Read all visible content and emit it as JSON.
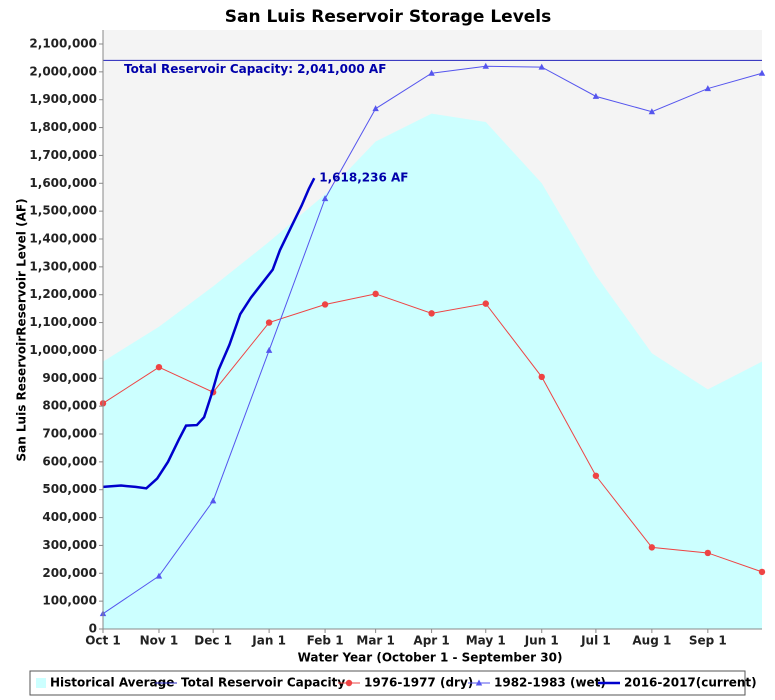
{
  "chart_data": {
    "type": "line",
    "title": "San Luis Reservoir Storage Levels",
    "x_label": "Water Year (October 1 - September 30)",
    "y_label": "San Luis ReservoirReservoir Level (AF)",
    "xlim": [
      0,
      365
    ],
    "xticks": [
      {
        "value": 0,
        "label": "Oct 1"
      },
      {
        "value": 31,
        "label": "Nov 1"
      },
      {
        "value": 61,
        "label": "Dec 1"
      },
      {
        "value": 92,
        "label": "Jan 1"
      },
      {
        "value": 123,
        "label": "Feb 1"
      },
      {
        "value": 151,
        "label": "Mar 1"
      },
      {
        "value": 182,
        "label": "Apr 1"
      },
      {
        "value": 212,
        "label": "May 1"
      },
      {
        "value": 243,
        "label": "Jun 1"
      },
      {
        "value": 273,
        "label": "Jul 1"
      },
      {
        "value": 304,
        "label": "Aug 1"
      },
      {
        "value": 335,
        "label": "Sep 1"
      }
    ],
    "ylim": [
      0,
      2100000
    ],
    "yticks": [
      0,
      {
        "value": 100000,
        "label": "100,000"
      },
      {
        "value": 200000,
        "label": "200,000"
      },
      {
        "value": 300000,
        "label": "300,000"
      },
      {
        "value": 400000,
        "label": "400,000"
      },
      {
        "value": 500000,
        "label": "500,000"
      },
      {
        "value": 600000,
        "label": "600,000"
      },
      {
        "value": 700000,
        "label": "700,000"
      },
      {
        "value": 800000,
        "label": "800,000"
      },
      {
        "value": 900000,
        "label": "900,000"
      },
      {
        "value": 1000000,
        "label": "1,000,000"
      },
      {
        "value": 1100000,
        "label": "1,100,000"
      },
      {
        "value": 1200000,
        "label": "1,200,000"
      },
      {
        "value": 1300000,
        "label": "1,300,000"
      },
      {
        "value": 1400000,
        "label": "1,400,000"
      },
      {
        "value": 1500000,
        "label": "1,500,000"
      },
      {
        "value": 1600000,
        "label": "1,600,000"
      },
      {
        "value": 1700000,
        "label": "1,700,000"
      },
      {
        "value": 1800000,
        "label": "1,800,000"
      },
      {
        "value": 1900000,
        "label": "1,900,000"
      },
      {
        "value": 2000000,
        "label": "2,000,000"
      },
      {
        "value": 2100000,
        "label": "2,100,000"
      }
    ],
    "series": [
      {
        "name": "Historical Average",
        "kind": "area",
        "color": "#ccffff",
        "x": [
          0,
          31,
          61,
          92,
          123,
          151,
          182,
          212,
          243,
          273,
          304,
          335,
          365
        ],
        "values": [
          960000,
          1085000,
          1230000,
          1390000,
          1560000,
          1750000,
          1850000,
          1820000,
          1600000,
          1270000,
          990000,
          860000,
          960000
        ]
      },
      {
        "name": "Total Reservoir Capacity",
        "kind": "line",
        "color": "#2222bb",
        "width": 1,
        "x": [
          0,
          365
        ],
        "values": [
          2041000,
          2041000
        ]
      },
      {
        "name": "1976-1977 (dry)",
        "kind": "line",
        "color": "#ee4444",
        "width": 1,
        "marker": "circle",
        "x": [
          0,
          31,
          61,
          92,
          123,
          151,
          182,
          212,
          243,
          273,
          304,
          335,
          365
        ],
        "values": [
          810000,
          940000,
          850000,
          1100000,
          1165000,
          1203000,
          1133000,
          1168000,
          905000,
          550000,
          293000,
          273000,
          205000
        ]
      },
      {
        "name": "1982-1983 (wet)",
        "kind": "line",
        "color": "#5555ee",
        "width": 1,
        "marker": "triangle",
        "x": [
          0,
          31,
          61,
          92,
          123,
          151,
          182,
          212,
          243,
          273,
          304,
          335,
          365
        ],
        "values": [
          55000,
          190000,
          460000,
          1000000,
          1545000,
          1868000,
          1995000,
          2020000,
          2017000,
          1912000,
          1857000,
          1940000,
          1995000
        ]
      },
      {
        "name": "2016-2017(current)",
        "kind": "line",
        "color": "#0000cc",
        "width": 2.5,
        "x": [
          0,
          10,
          18,
          24,
          30,
          36,
          42,
          46,
          52,
          56,
          60,
          64,
          70,
          76,
          82,
          88,
          94,
          98,
          104,
          110,
          114,
          117
        ],
        "values": [
          510000,
          515000,
          510000,
          505000,
          540000,
          600000,
          680000,
          730000,
          732000,
          760000,
          840000,
          930000,
          1020000,
          1130000,
          1190000,
          1240000,
          1290000,
          1360000,
          1440000,
          1520000,
          1580000,
          1618236
        ]
      }
    ],
    "annotations": [
      {
        "series": 1,
        "text": "Total Reservoir Capacity: 2,041,000 AF"
      },
      {
        "series": 4,
        "text": "1,618,236 AF"
      }
    ],
    "legend": "bottom"
  }
}
